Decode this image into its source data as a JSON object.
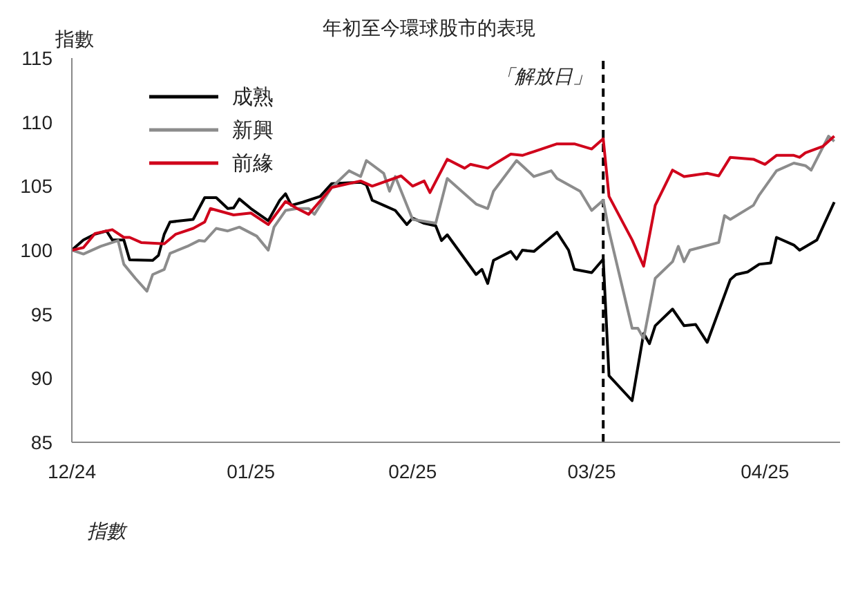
{
  "chart_data": {
    "type": "line",
    "title": "年初至今環球股市的表現",
    "ylabel": "指數",
    "annotations": [
      "指數"
    ],
    "xlim": [
      "2024-12-31",
      "2025-05-13"
    ],
    "xticks": [
      {
        "value": "2024-12-31",
        "label": "12/24"
      },
      {
        "value": "2025-01-31",
        "label": "01/25"
      },
      {
        "value": "2025-02-28",
        "label": "02/25"
      },
      {
        "value": "2025-03-31",
        "label": "03/25"
      },
      {
        "value": "2025-04-30",
        "label": "04/25"
      }
    ],
    "ylim": [
      85,
      115
    ],
    "yticks": [
      85,
      90,
      95,
      100,
      105,
      110,
      115
    ],
    "grid": false,
    "legend": "top left",
    "marker": "none",
    "line_style": "solid",
    "ref_lines": [
      {
        "axis": "x",
        "value": "2025-04-02",
        "label": "「解放日」",
        "color": "#000000",
        "line_style": "dashed"
      }
    ],
    "series": [
      {
        "name": "成熟",
        "color": "#000000",
        "x": [
          "2024-12-31",
          "2025-01-02",
          "2025-01-04",
          "2025-01-06",
          "2025-01-07",
          "2025-01-09",
          "2025-01-10",
          "2025-01-14",
          "2025-01-15",
          "2025-01-16",
          "2025-01-17",
          "2025-01-21",
          "2025-01-23",
          "2025-01-25",
          "2025-01-27",
          "2025-01-28",
          "2025-01-29",
          "2025-01-31",
          "2025-02-03",
          "2025-02-05",
          "2025-02-06",
          "2025-02-07",
          "2025-02-09",
          "2025-02-12",
          "2025-02-14",
          "2025-02-19",
          "2025-02-20",
          "2025-02-21",
          "2025-02-23",
          "2025-02-25",
          "2025-02-27",
          "2025-02-28",
          "2025-03-02",
          "2025-03-04",
          "2025-03-05",
          "2025-03-06",
          "2025-03-11",
          "2025-03-12",
          "2025-03-13",
          "2025-03-14",
          "2025-03-17",
          "2025-03-18",
          "2025-03-19",
          "2025-03-21",
          "2025-03-25",
          "2025-03-27",
          "2025-03-28",
          "2025-03-31",
          "2025-04-02",
          "2025-04-03",
          "2025-04-07",
          "2025-04-09",
          "2025-04-10",
          "2025-04-11",
          "2025-04-14",
          "2025-04-16",
          "2025-04-18",
          "2025-04-20",
          "2025-04-24",
          "2025-04-25",
          "2025-04-27",
          "2025-04-29",
          "2025-05-01",
          "2025-05-02",
          "2025-05-05",
          "2025-05-06",
          "2025-05-09",
          "2025-05-12"
        ],
        "values": [
          100,
          100.8,
          101.25,
          101.5,
          100.8,
          100.8,
          99.25,
          99.2,
          99.6,
          101.25,
          102.2,
          102.4,
          104.1,
          104.1,
          103.25,
          103.3,
          104,
          103.25,
          102.3,
          103.9,
          104.4,
          103.5,
          103.75,
          104.2,
          105.2,
          105.3,
          105.1,
          103.9,
          103.5,
          103.1,
          102,
          102.5,
          102.1,
          101.9,
          100.75,
          101.2,
          98.1,
          98.5,
          97.4,
          99.2,
          99.9,
          99.3,
          100,
          99.9,
          101.4,
          100,
          98.5,
          98.25,
          99.3,
          90.2,
          88.25,
          93.5,
          92.7,
          94.1,
          95.4,
          94.1,
          94.2,
          92.8,
          97.7,
          98.1,
          98.3,
          98.9,
          99,
          101,
          100.4,
          100,
          100.8,
          103.75
        ]
      },
      {
        "name": "新興",
        "color": "#8c8c8c",
        "x": [
          "2024-12-31",
          "2025-01-02",
          "2025-01-05",
          "2025-01-08",
          "2025-01-09",
          "2025-01-11",
          "2025-01-13",
          "2025-01-14",
          "2025-01-16",
          "2025-01-17",
          "2025-01-20",
          "2025-01-22",
          "2025-01-23",
          "2025-01-25",
          "2025-01-27",
          "2025-01-29",
          "2025-02-01",
          "2025-02-03",
          "2025-02-04",
          "2025-02-06",
          "2025-02-08",
          "2025-02-10",
          "2025-02-11",
          "2025-02-14",
          "2025-02-17",
          "2025-02-19",
          "2025-02-20",
          "2025-02-23",
          "2025-02-24",
          "2025-02-25",
          "2025-02-28",
          "2025-03-04",
          "2025-03-06",
          "2025-03-11",
          "2025-03-13",
          "2025-03-14",
          "2025-03-18",
          "2025-03-21",
          "2025-03-24",
          "2025-03-25",
          "2025-03-29",
          "2025-03-31",
          "2025-04-02",
          "2025-04-03",
          "2025-04-07",
          "2025-04-08",
          "2025-04-09",
          "2025-04-11",
          "2025-04-14",
          "2025-04-15",
          "2025-04-16",
          "2025-04-17",
          "2025-04-22",
          "2025-04-23",
          "2025-04-24",
          "2025-04-28",
          "2025-04-29",
          "2025-05-02",
          "2025-05-05",
          "2025-05-07",
          "2025-05-08",
          "2025-05-11",
          "2025-05-12"
        ],
        "values": [
          100,
          99.7,
          100.3,
          100.75,
          98.9,
          97.8,
          96.8,
          98.1,
          98.5,
          99.75,
          100.3,
          100.75,
          100.7,
          101.7,
          101.5,
          101.8,
          101.1,
          100,
          101.8,
          103.1,
          103.25,
          103.25,
          102.8,
          104.9,
          106.2,
          105.75,
          107,
          106,
          104.6,
          105.75,
          102.4,
          102.1,
          105.6,
          103.6,
          103.25,
          104.6,
          107,
          105.75,
          106.2,
          105.6,
          104.6,
          103.1,
          103.9,
          101.5,
          93.9,
          93.9,
          93.1,
          97.8,
          99.1,
          100.3,
          99.1,
          100,
          100.6,
          102.7,
          102.4,
          103.5,
          104.3,
          106.2,
          106.8,
          106.6,
          106.25,
          108.9,
          108.5
        ]
      },
      {
        "name": "前緣",
        "color": "#d0021b",
        "x": [
          "2024-12-31",
          "2025-01-02",
          "2025-01-04",
          "2025-01-07",
          "2025-01-09",
          "2025-01-10",
          "2025-01-12",
          "2025-01-16",
          "2025-01-18",
          "2025-01-21",
          "2025-01-23",
          "2025-01-24",
          "2025-01-28",
          "2025-01-31",
          "2025-02-03",
          "2025-02-06",
          "2025-02-08",
          "2025-02-10",
          "2025-02-14",
          "2025-02-17",
          "2025-02-19",
          "2025-02-21",
          "2025-02-26",
          "2025-02-28",
          "2025-03-02",
          "2025-03-03",
          "2025-03-06",
          "2025-03-09",
          "2025-03-10",
          "2025-03-13",
          "2025-03-17",
          "2025-03-19",
          "2025-03-21",
          "2025-03-25",
          "2025-03-28",
          "2025-03-31",
          "2025-04-02",
          "2025-04-03",
          "2025-04-07",
          "2025-04-09",
          "2025-04-11",
          "2025-04-14",
          "2025-04-16",
          "2025-04-20",
          "2025-04-22",
          "2025-04-24",
          "2025-04-28",
          "2025-04-30",
          "2025-05-02",
          "2025-05-05",
          "2025-05-06",
          "2025-05-07",
          "2025-05-10",
          "2025-05-12"
        ],
        "values": [
          100,
          100.2,
          101.3,
          101.6,
          101,
          101,
          100.6,
          100.5,
          101.25,
          101.7,
          102.2,
          103.25,
          102.75,
          102.9,
          102,
          103.8,
          103.25,
          102.8,
          104.9,
          105.2,
          105.4,
          105,
          105.8,
          105,
          105.4,
          104.5,
          107.1,
          106.4,
          106.7,
          106.4,
          107.5,
          107.4,
          107.7,
          108.3,
          108.3,
          107.9,
          108.7,
          104.2,
          100.8,
          98.75,
          103.5,
          106.25,
          105.75,
          106,
          105.8,
          107.25,
          107.1,
          106.7,
          107.4,
          107.4,
          107.25,
          107.6,
          108.1,
          108.9
        ]
      }
    ]
  }
}
